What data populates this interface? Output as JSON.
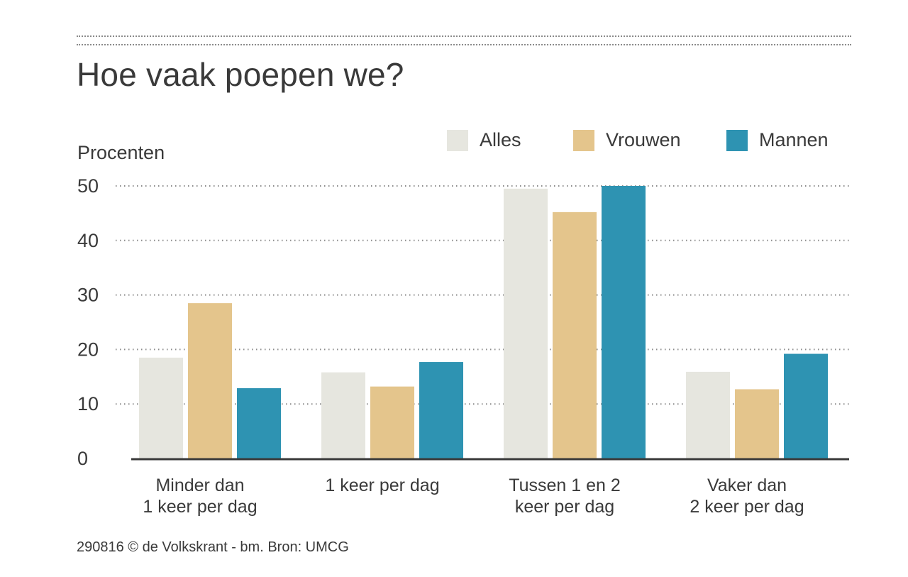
{
  "title": "Hoe vaak poepen we?",
  "credit": "290816 © de Volkskrant - bm. Bron: UMCG",
  "colors": {
    "Alles": "#e6e6df",
    "Vrouwen": "#e4c58c",
    "Mannen": "#2e93b2",
    "grid": "#8a8a8a",
    "axis": "#3a3a3a",
    "text": "#3a3a3a"
  },
  "chart_data": {
    "type": "bar",
    "ylabel": "Procenten",
    "ylim": [
      0,
      50
    ],
    "yticks": [
      0,
      10,
      20,
      30,
      40,
      50
    ],
    "grid": true,
    "grid_style": "dotted",
    "legend_position": "top-right",
    "categories": [
      [
        "Minder dan",
        "1 keer per dag"
      ],
      [
        "1 keer per dag"
      ],
      [
        "Tussen 1 en 2",
        "keer per dag"
      ],
      [
        "Vaker dan",
        "2 keer per dag"
      ]
    ],
    "series": [
      {
        "name": "Alles",
        "values": [
          18.5,
          15.8,
          49.5,
          15.9
        ]
      },
      {
        "name": "Vrouwen",
        "values": [
          28.5,
          13.2,
          45.2,
          12.7
        ]
      },
      {
        "name": "Mannen",
        "values": [
          12.9,
          17.7,
          50.0,
          19.2
        ]
      }
    ]
  }
}
